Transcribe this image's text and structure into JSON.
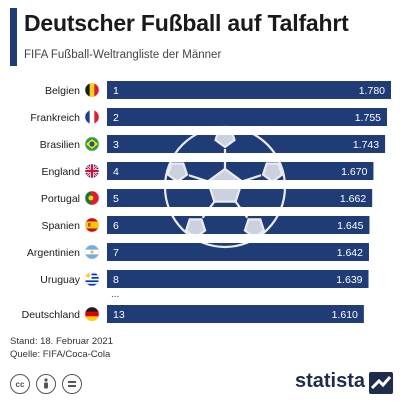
{
  "header": {
    "title": "Deutscher Fußball auf Talfahrt",
    "subtitle": "FIFA Fußball-Weltrangliste der Männer"
  },
  "chart_data": {
    "type": "bar",
    "orientation": "horizontal",
    "title": "Deutscher Fußball auf Talfahrt",
    "subtitle": "FIFA Fußball-Weltrangliste der Männer",
    "categories": [
      "Belgien",
      "Frankreich",
      "Brasilien",
      "England",
      "Portugal",
      "Spanien",
      "Argentinien",
      "Uruguay",
      "Deutschland"
    ],
    "ranks": [
      "1",
      "2",
      "3",
      "4",
      "5",
      "6",
      "7",
      "8",
      "13"
    ],
    "values": [
      1780,
      1755,
      1743,
      1670,
      1662,
      1645,
      1642,
      1639,
      1610
    ],
    "value_labels": [
      "1.780",
      "1.755",
      "1.743",
      "1.670",
      "1.662",
      "1.645",
      "1.642",
      "1.639",
      "1.610"
    ],
    "flags": [
      "flag-belgium",
      "flag-france",
      "flag-brazil",
      "flag-england",
      "flag-portugal",
      "flag-spain",
      "flag-argentina",
      "flag-uruguay",
      "flag-germany"
    ],
    "gap_marker": "...",
    "bar_color": "#1f3c77",
    "xlim": [
      0,
      1780
    ],
    "grid": false,
    "legend": "none"
  },
  "footer": {
    "date": "Stand: 18. Februar 2021",
    "source": "Quelle: FIFA/Coca-Cola",
    "license_icons": [
      "cc-icon",
      "by-icon",
      "nd-icon"
    ],
    "brand": "statista"
  }
}
